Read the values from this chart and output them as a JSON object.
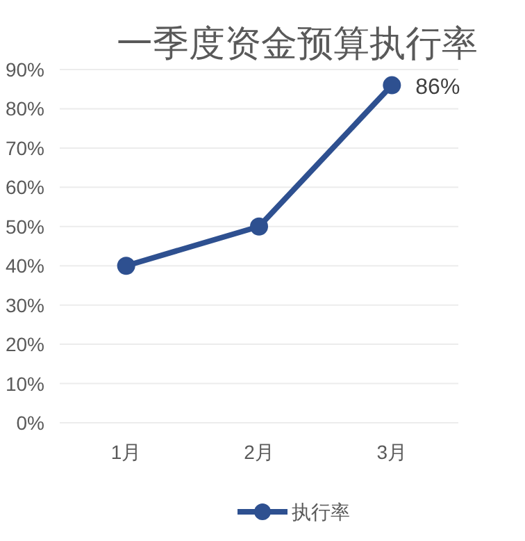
{
  "chart_data": {
    "type": "line",
    "title": "一季度资金预算执行率",
    "categories": [
      "1月",
      "2月",
      "3月"
    ],
    "series": [
      {
        "name": "执行率",
        "color": "#2e5090",
        "values": [
          40,
          50,
          86
        ],
        "value_labels": [
          null,
          null,
          "86%"
        ]
      }
    ],
    "ylim": [
      0,
      90
    ],
    "yticks": [
      {
        "value": 0,
        "label": "0%"
      },
      {
        "value": 10,
        "label": "10%"
      },
      {
        "value": 20,
        "label": "20%"
      },
      {
        "value": 30,
        "label": "30%"
      },
      {
        "value": 40,
        "label": "40%"
      },
      {
        "value": 50,
        "label": "50%"
      },
      {
        "value": 60,
        "label": "60%"
      },
      {
        "value": 70,
        "label": "70%"
      },
      {
        "value": 80,
        "label": "80%"
      },
      {
        "value": 90,
        "label": "90%"
      }
    ],
    "grid": "y",
    "legend": "bottom",
    "marker": "circle",
    "line_style": "solid"
  }
}
